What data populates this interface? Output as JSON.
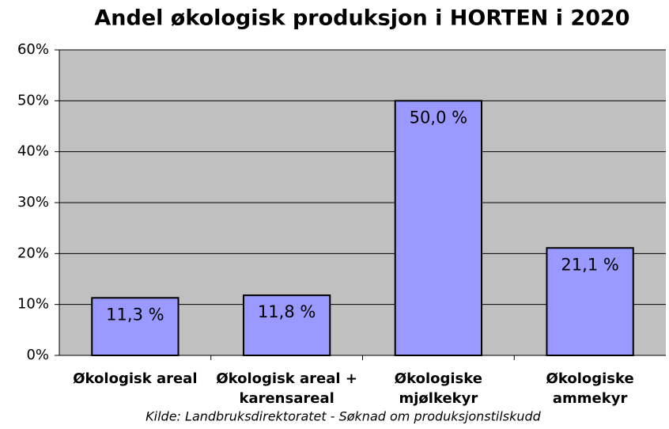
{
  "chart_data": {
    "type": "bar",
    "title": "Andel økologisk produksjon i HORTEN i 2020",
    "categories": [
      "Økologisk areal",
      "Økologisk areal + karensareal",
      "Økologiske mjølkekyr",
      "Økologiske ammekyr"
    ],
    "values": [
      11.3,
      11.8,
      50.0,
      21.1
    ],
    "value_labels": [
      "11,3 %",
      "11,8 %",
      "50,0 %",
      "21,1 %"
    ],
    "color": "#9999ff",
    "ylim": [
      0,
      60
    ],
    "yticks": [
      {
        "value": 0,
        "label": "0%"
      },
      {
        "value": 10,
        "label": "10%"
      },
      {
        "value": 20,
        "label": "20%"
      },
      {
        "value": 30,
        "label": "30%"
      },
      {
        "value": 40,
        "label": "40%"
      },
      {
        "value": 50,
        "label": "50%"
      },
      {
        "value": 60,
        "label": "60%"
      }
    ],
    "grid": true,
    "note": "Kilde: Landbruksdirektoratet - Søknad om produksjonstilskudd"
  }
}
